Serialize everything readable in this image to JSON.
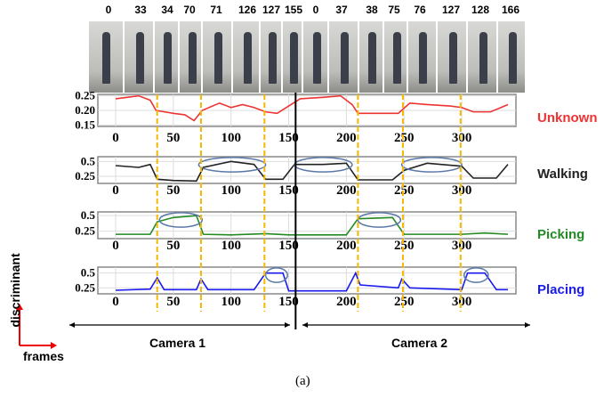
{
  "frame_labels": [
    "0",
    "33",
    "34",
    "70",
    "71",
    "126",
    "127",
    "155",
    "0",
    "37",
    "38",
    "75",
    "76",
    "127",
    "128",
    "166"
  ],
  "camera_labels": [
    "Camera 1",
    "Camera 2"
  ],
  "axis_legend": {
    "y": "discriminant",
    "x": "frames"
  },
  "caption": "(a)",
  "colors": {
    "Unknown": "#ee3333",
    "Walking": "#222222",
    "Picking": "#228b22",
    "Placing": "#1a1aee",
    "boundary": "#f5b800",
    "ellipse": "#5a78a8"
  },
  "chart_data": {
    "type": "line",
    "x_ticks": [
      0,
      50,
      100,
      150,
      200,
      250,
      300
    ],
    "xlim": [
      0,
      340
    ],
    "boundaries": [
      36,
      74,
      129,
      210,
      249,
      299
    ],
    "camera_split": 156,
    "panels": [
      {
        "name": "Unknown",
        "yticks": [
          "0.25",
          "0.20",
          "0.15"
        ],
        "ylim": [
          0.15,
          0.26
        ],
        "tickvals": [
          0.25,
          0.2,
          0.15
        ],
        "values": [
          [
            0,
            0.24
          ],
          [
            10,
            0.245
          ],
          [
            20,
            0.25
          ],
          [
            30,
            0.235
          ],
          [
            35,
            0.2
          ],
          [
            50,
            0.19
          ],
          [
            60,
            0.185
          ],
          [
            68,
            0.165
          ],
          [
            75,
            0.2
          ],
          [
            90,
            0.225
          ],
          [
            100,
            0.21
          ],
          [
            110,
            0.22
          ],
          [
            120,
            0.21
          ],
          [
            130,
            0.195
          ],
          [
            140,
            0.19
          ],
          [
            150,
            0.215
          ],
          [
            160,
            0.24
          ],
          [
            180,
            0.245
          ],
          [
            195,
            0.25
          ],
          [
            205,
            0.22
          ],
          [
            210,
            0.19
          ],
          [
            230,
            0.19
          ],
          [
            245,
            0.19
          ],
          [
            255,
            0.225
          ],
          [
            270,
            0.22
          ],
          [
            290,
            0.215
          ],
          [
            300,
            0.21
          ],
          [
            310,
            0.195
          ],
          [
            325,
            0.195
          ],
          [
            340,
            0.22
          ]
        ],
        "highlights": []
      },
      {
        "name": "Walking",
        "yticks": [
          "0.5",
          "0.25"
        ],
        "ylim": [
          0.13,
          0.58
        ],
        "tickvals": [
          0.5,
          0.25
        ],
        "values": [
          [
            0,
            0.43
          ],
          [
            20,
            0.4
          ],
          [
            30,
            0.45
          ],
          [
            36,
            0.2
          ],
          [
            50,
            0.18
          ],
          [
            70,
            0.17
          ],
          [
            76,
            0.4
          ],
          [
            100,
            0.5
          ],
          [
            120,
            0.45
          ],
          [
            130,
            0.2
          ],
          [
            145,
            0.2
          ],
          [
            155,
            0.45
          ],
          [
            180,
            0.45
          ],
          [
            200,
            0.47
          ],
          [
            210,
            0.19
          ],
          [
            240,
            0.19
          ],
          [
            250,
            0.35
          ],
          [
            270,
            0.47
          ],
          [
            300,
            0.42
          ],
          [
            310,
            0.22
          ],
          [
            330,
            0.22
          ],
          [
            340,
            0.45
          ]
        ],
        "highlights": [
          [
            72,
            130
          ],
          [
            155,
            205
          ],
          [
            248,
            300
          ]
        ]
      },
      {
        "name": "Picking",
        "yticks": [
          "0.5",
          "0.25"
        ],
        "ylim": [
          0.13,
          0.56
        ],
        "tickvals": [
          0.5,
          0.25
        ],
        "values": [
          [
            0,
            0.2
          ],
          [
            30,
            0.2
          ],
          [
            36,
            0.4
          ],
          [
            50,
            0.47
          ],
          [
            70,
            0.5
          ],
          [
            76,
            0.2
          ],
          [
            100,
            0.19
          ],
          [
            130,
            0.21
          ],
          [
            150,
            0.19
          ],
          [
            200,
            0.19
          ],
          [
            210,
            0.45
          ],
          [
            240,
            0.47
          ],
          [
            250,
            0.2
          ],
          [
            300,
            0.2
          ],
          [
            320,
            0.22
          ],
          [
            340,
            0.2
          ]
        ],
        "highlights": [
          [
            38,
            75
          ],
          [
            210,
            247
          ]
        ]
      },
      {
        "name": "Placing",
        "yticks": [
          "0.5",
          "0.25"
        ],
        "ylim": [
          0.15,
          0.6
        ],
        "tickvals": [
          0.5,
          0.25
        ],
        "values": [
          [
            0,
            0.21
          ],
          [
            30,
            0.23
          ],
          [
            36,
            0.42
          ],
          [
            42,
            0.22
          ],
          [
            70,
            0.22
          ],
          [
            74,
            0.4
          ],
          [
            80,
            0.22
          ],
          [
            120,
            0.22
          ],
          [
            130,
            0.5
          ],
          [
            145,
            0.5
          ],
          [
            150,
            0.2
          ],
          [
            200,
            0.2
          ],
          [
            208,
            0.5
          ],
          [
            212,
            0.3
          ],
          [
            245,
            0.25
          ],
          [
            248,
            0.4
          ],
          [
            255,
            0.25
          ],
          [
            300,
            0.22
          ],
          [
            305,
            0.5
          ],
          [
            320,
            0.5
          ],
          [
            330,
            0.22
          ],
          [
            340,
            0.22
          ]
        ],
        "highlights": [
          [
            130,
            149
          ],
          [
            302,
            323
          ]
        ]
      }
    ]
  }
}
